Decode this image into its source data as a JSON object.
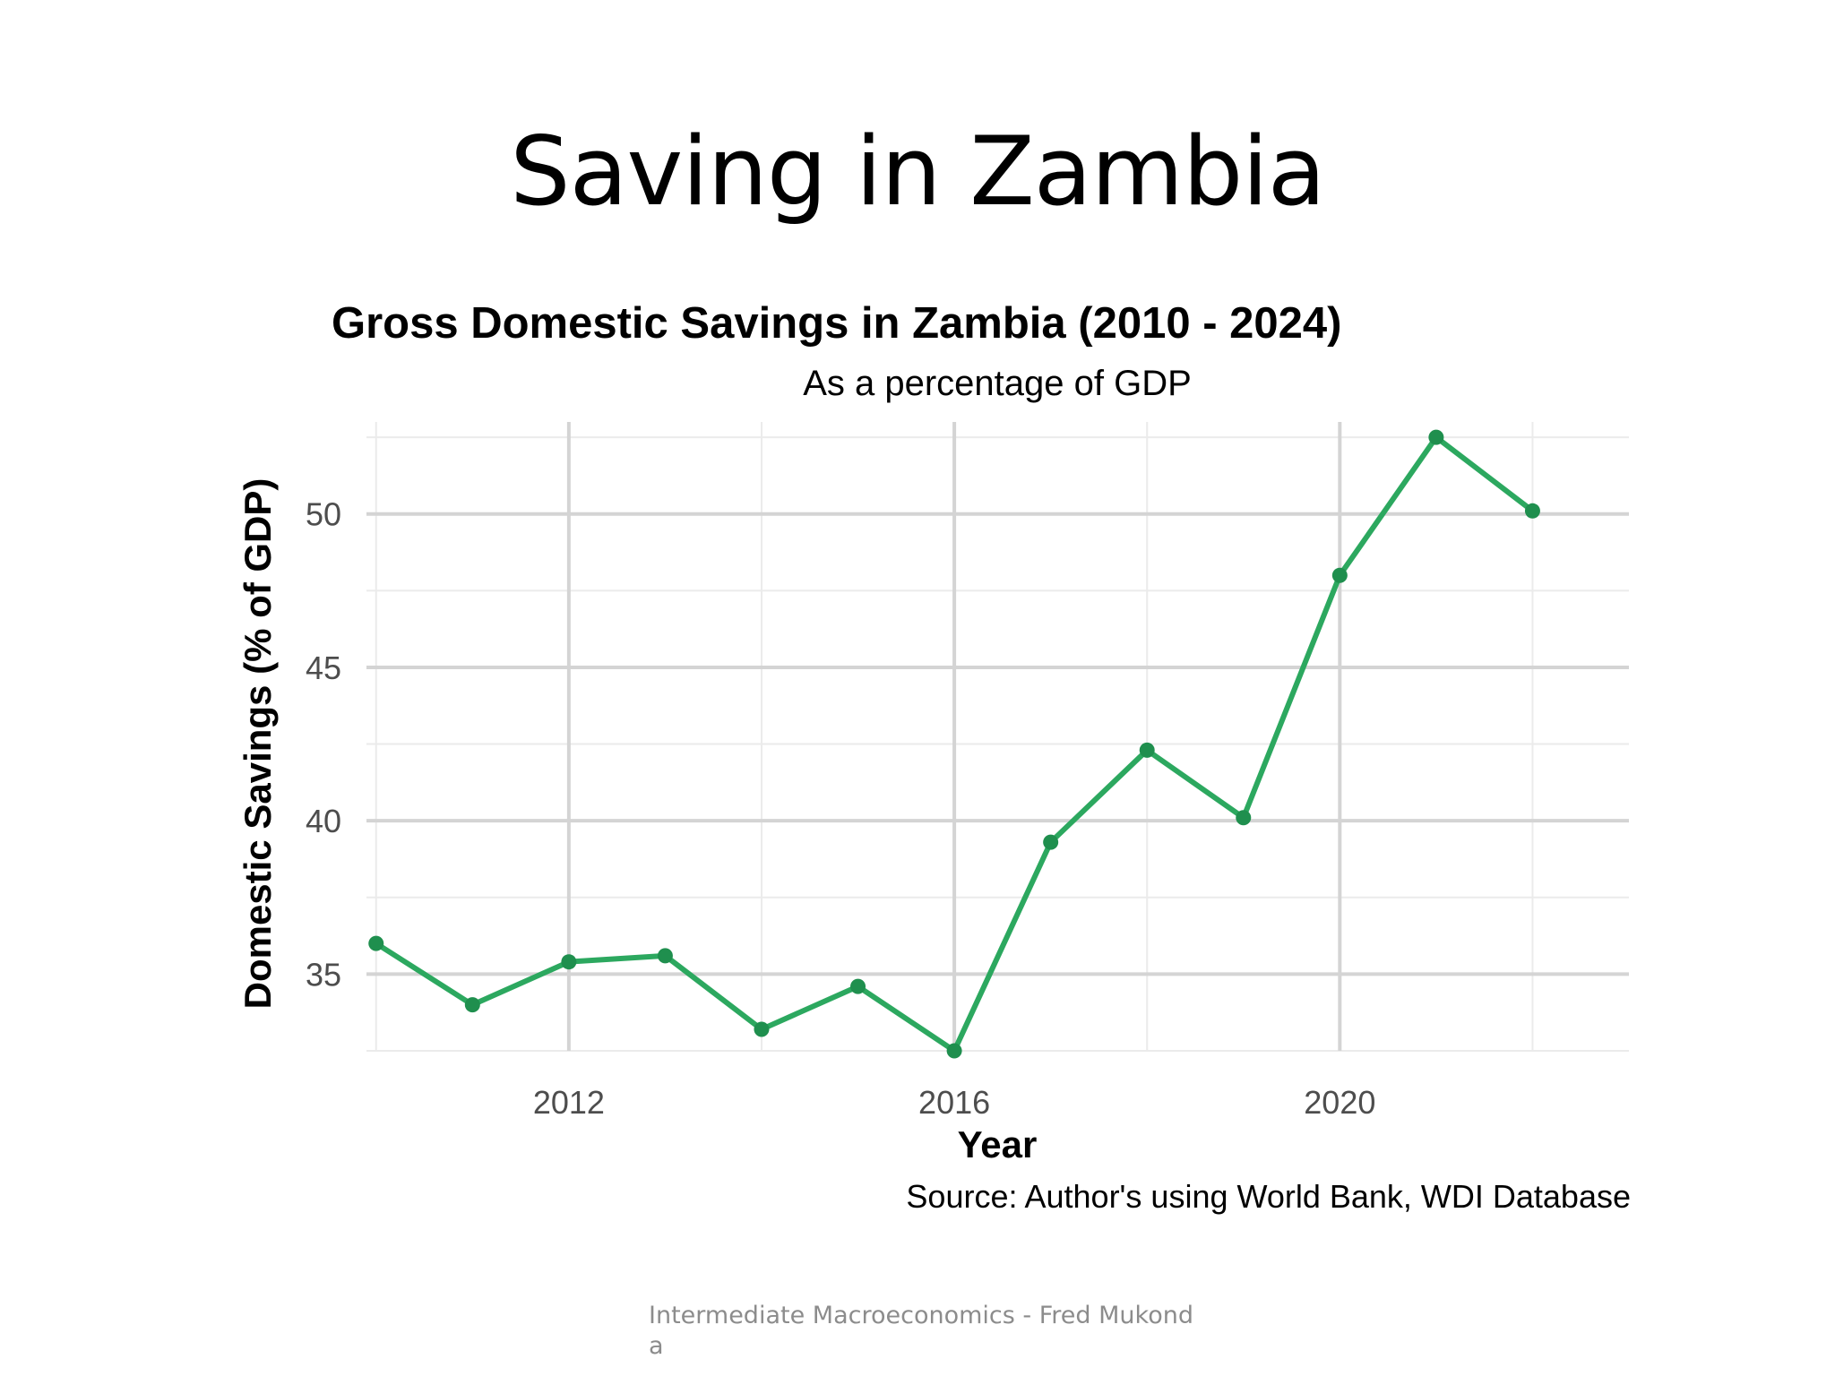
{
  "slide": {
    "title": "Saving in Zambia",
    "footer": "Intermediate Macroeconomics - Fred Mukonda"
  },
  "chart_data": {
    "type": "line",
    "title": "Gross Domestic Savings in Zambia (2010 - 2024)",
    "subtitle": "As a percentage of GDP",
    "xlabel": "Year",
    "ylabel": "Domestic Savings (% of GDP)",
    "caption": "Source: Author's using World Bank, WDI Database",
    "x": [
      2010,
      2011,
      2012,
      2013,
      2014,
      2015,
      2016,
      2017,
      2018,
      2019,
      2020,
      2021,
      2022
    ],
    "values": [
      36.0,
      34.0,
      35.4,
      35.6,
      33.2,
      34.6,
      32.5,
      39.3,
      42.3,
      40.1,
      48.0,
      52.5,
      50.1
    ],
    "xlim": [
      2009.9,
      2023.0
    ],
    "ylim": [
      32.5,
      53.0
    ],
    "x_ticks": [
      2012,
      2016,
      2020
    ],
    "y_ticks": [
      35,
      40,
      45,
      50
    ],
    "line_color": "#2ca85f",
    "grid": true,
    "legend": "none"
  }
}
